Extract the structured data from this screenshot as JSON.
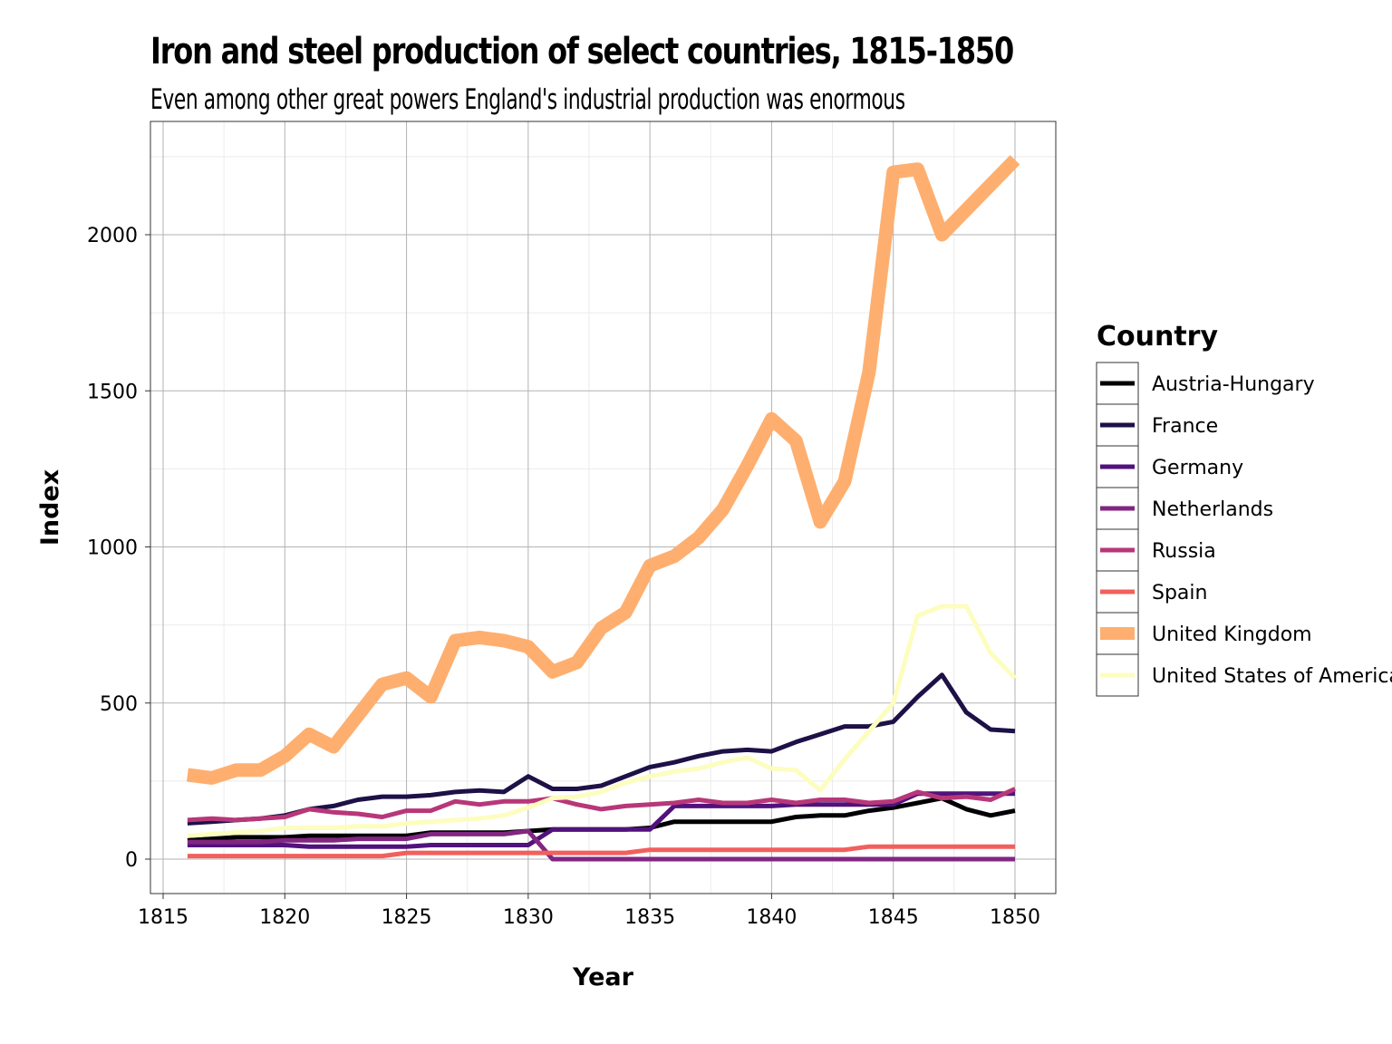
{
  "chart_data": {
    "type": "line",
    "title": "Iron and steel production of select countries, 1815-1850",
    "subtitle": "Even among other great powers England's industrial production was enormous",
    "xlabel": "Year",
    "ylabel": "Index",
    "xlim": [
      1815,
      1850
    ],
    "ylim": [
      -110,
      2360
    ],
    "x_ticks": [
      1815,
      1820,
      1825,
      1830,
      1835,
      1840,
      1845,
      1850
    ],
    "y_ticks": [
      0,
      500,
      1000,
      1500,
      2000
    ],
    "grid": true,
    "legend": {
      "title": "Country",
      "position": "right"
    },
    "x": [
      1816,
      1817,
      1818,
      1819,
      1820,
      1821,
      1822,
      1823,
      1824,
      1825,
      1826,
      1827,
      1828,
      1829,
      1830,
      1831,
      1832,
      1833,
      1834,
      1835,
      1836,
      1837,
      1838,
      1839,
      1840,
      1841,
      1842,
      1843,
      1844,
      1845,
      1846,
      1847,
      1848,
      1849,
      1850
    ],
    "series": [
      {
        "name": "Austria-Hungary",
        "color": "#000004",
        "width": 5,
        "values": [
          60,
          65,
          70,
          70,
          70,
          75,
          75,
          75,
          75,
          75,
          85,
          85,
          85,
          85,
          90,
          95,
          95,
          95,
          95,
          100,
          120,
          120,
          120,
          120,
          120,
          135,
          140,
          140,
          155,
          165,
          180,
          195,
          160,
          140,
          155
        ]
      },
      {
        "name": "France",
        "color": "#1d1147",
        "width": 5,
        "values": [
          115,
          120,
          125,
          130,
          140,
          160,
          170,
          190,
          200,
          200,
          205,
          215,
          220,
          215,
          265,
          225,
          225,
          235,
          265,
          295,
          310,
          330,
          345,
          350,
          345,
          375,
          400,
          425,
          425,
          440,
          520,
          590,
          470,
          415,
          410
        ]
      },
      {
        "name": "Germany",
        "color": "#51127c",
        "width": 5,
        "values": [
          45,
          45,
          45,
          45,
          45,
          40,
          40,
          40,
          40,
          40,
          45,
          45,
          45,
          45,
          45,
          95,
          95,
          95,
          95,
          95,
          170,
          170,
          170,
          170,
          170,
          175,
          175,
          175,
          175,
          175,
          210,
          210,
          210,
          210,
          210
        ]
      },
      {
        "name": "Netherlands",
        "color": "#822681",
        "width": 5,
        "values": [
          55,
          55,
          55,
          55,
          60,
          60,
          60,
          65,
          65,
          65,
          80,
          80,
          80,
          80,
          90,
          0,
          0,
          0,
          0,
          0,
          0,
          0,
          0,
          0,
          0,
          0,
          0,
          0,
          0,
          0,
          0,
          0,
          0,
          0,
          0
        ]
      },
      {
        "name": "Russia",
        "color": "#b73779",
        "width": 5,
        "values": [
          125,
          130,
          125,
          130,
          135,
          160,
          150,
          145,
          135,
          155,
          155,
          185,
          175,
          185,
          185,
          195,
          175,
          160,
          170,
          175,
          180,
          190,
          180,
          180,
          190,
          180,
          190,
          190,
          180,
          185,
          215,
          195,
          200,
          190,
          225
        ]
      },
      {
        "name": "Spain",
        "color": "#f1605d",
        "width": 5,
        "values": [
          10,
          10,
          10,
          10,
          10,
          10,
          10,
          10,
          10,
          20,
          20,
          20,
          20,
          20,
          20,
          20,
          20,
          20,
          20,
          30,
          30,
          30,
          30,
          30,
          30,
          30,
          30,
          30,
          40,
          40,
          40,
          40,
          40,
          40,
          40
        ]
      },
      {
        "name": "United Kingdom",
        "color": "#feaf6f",
        "width": 15,
        "values": [
          270,
          260,
          285,
          285,
          330,
          400,
          360,
          460,
          560,
          580,
          520,
          700,
          710,
          700,
          680,
          600,
          630,
          740,
          790,
          940,
          970,
          1030,
          1120,
          1260,
          1410,
          1340,
          1080,
          1210,
          1560,
          2200,
          2210,
          2000,
          2080,
          2160,
          2240
        ]
      },
      {
        "name": "United States of America",
        "color": "#fcfdbf",
        "width": 5,
        "values": [
          75,
          80,
          85,
          90,
          100,
          100,
          100,
          105,
          105,
          115,
          120,
          125,
          130,
          140,
          165,
          195,
          200,
          215,
          245,
          265,
          280,
          290,
          310,
          325,
          290,
          285,
          220,
          320,
          410,
          500,
          780,
          810,
          810,
          660,
          580
        ]
      }
    ]
  }
}
